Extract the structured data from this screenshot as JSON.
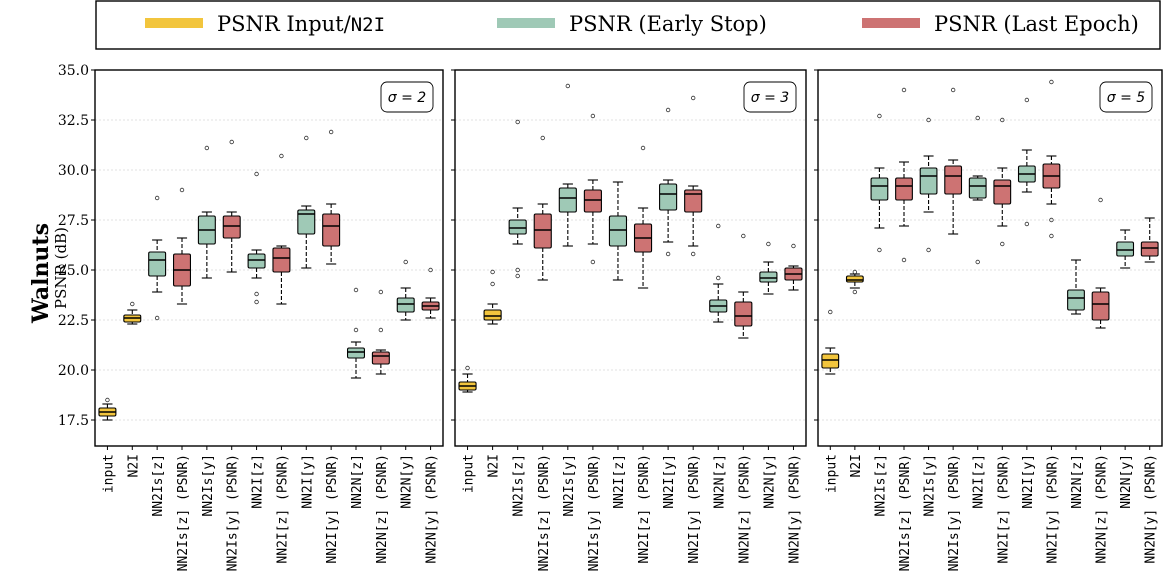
{
  "figure": {
    "row_label": "Walnuts",
    "ylabel": "PSNR (dB)"
  },
  "legend": {
    "placement": "top",
    "entries": [
      {
        "prefix": "PSNR Input/",
        "mono": "N2I",
        "color": "#f2c53d"
      },
      {
        "prefix": "PSNR (Early Stop)",
        "mono": "",
        "color": "#9fc9b6"
      },
      {
        "prefix": "PSNR (Last Epoch)",
        "mono": "",
        "color": "#cd7373"
      }
    ]
  },
  "chart_data": [
    {
      "type": "box",
      "annotation": "σ = 2",
      "ylabel": "PSNR (dB)",
      "ylim": [
        16.2,
        35.0
      ],
      "yticks": [
        "17.5",
        "20.0",
        "22.5",
        "25.0",
        "27.5",
        "30.0",
        "32.5",
        "35.0"
      ],
      "grid": true,
      "categories": [
        "input",
        "N2I",
        "NN2Is[z]",
        "NN2Is[z] (PSNR)",
        "NN2Is[y]",
        "NN2Is[y] (PSNR)",
        "NN2I[z]",
        "NN2I[z] (PSNR)",
        "NN2I[y]",
        "NN2I[y] (PSNR)",
        "NN2N[z]",
        "NN2N[z] (PSNR)",
        "NN2N[y]",
        "NN2N[y] (PSNR)"
      ],
      "kinds": [
        "input",
        "input",
        "early",
        "last",
        "early",
        "last",
        "early",
        "last",
        "early",
        "last",
        "early",
        "last",
        "early",
        "last"
      ],
      "boxes": [
        {
          "whislo": 17.5,
          "q1": 17.7,
          "med": 17.9,
          "q3": 18.1,
          "whishi": 18.3,
          "fliers": [
            18.5
          ]
        },
        {
          "whislo": 22.3,
          "q1": 22.4,
          "med": 22.6,
          "q3": 22.75,
          "whishi": 23.0,
          "fliers": [
            23.3
          ]
        },
        {
          "whislo": 23.9,
          "q1": 24.7,
          "med": 25.5,
          "q3": 25.9,
          "whishi": 26.5,
          "fliers": [
            22.6,
            28.6
          ]
        },
        {
          "whislo": 23.3,
          "q1": 24.2,
          "med": 25.0,
          "q3": 25.8,
          "whishi": 26.6,
          "fliers": [
            29.0
          ]
        },
        {
          "whislo": 24.6,
          "q1": 26.3,
          "med": 27.0,
          "q3": 27.7,
          "whishi": 27.9,
          "fliers": [
            31.1
          ]
        },
        {
          "whislo": 24.9,
          "q1": 26.6,
          "med": 27.2,
          "q3": 27.7,
          "whishi": 27.9,
          "fliers": [
            31.4
          ]
        },
        {
          "whislo": 24.6,
          "q1": 25.1,
          "med": 25.5,
          "q3": 25.8,
          "whishi": 26.0,
          "fliers": [
            23.4,
            23.8,
            29.8
          ]
        },
        {
          "whislo": 23.3,
          "q1": 24.9,
          "med": 25.6,
          "q3": 26.1,
          "whishi": 26.2,
          "fliers": [
            30.7
          ]
        },
        {
          "whislo": 25.1,
          "q1": 26.8,
          "med": 27.8,
          "q3": 28.0,
          "whishi": 28.2,
          "fliers": [
            31.6
          ]
        },
        {
          "whislo": 25.3,
          "q1": 26.2,
          "med": 27.2,
          "q3": 27.8,
          "whishi": 28.3,
          "fliers": [
            31.9
          ]
        },
        {
          "whislo": 19.6,
          "q1": 20.6,
          "med": 20.9,
          "q3": 21.1,
          "whishi": 21.4,
          "fliers": [
            22.0,
            24.0
          ]
        },
        {
          "whislo": 19.8,
          "q1": 20.3,
          "med": 20.7,
          "q3": 20.9,
          "whishi": 21.0,
          "fliers": [
            22.0,
            23.9
          ]
        },
        {
          "whislo": 22.5,
          "q1": 22.9,
          "med": 23.3,
          "q3": 23.6,
          "whishi": 24.1,
          "fliers": [
            25.4
          ]
        },
        {
          "whislo": 22.6,
          "q1": 23.0,
          "med": 23.2,
          "q3": 23.4,
          "whishi": 23.6,
          "fliers": [
            25.0
          ]
        }
      ]
    },
    {
      "type": "box",
      "annotation": "σ = 3",
      "ylim": [
        16.2,
        35.0
      ],
      "grid": true,
      "categories": [
        "input",
        "N2I",
        "NN2Is[z]",
        "NN2Is[z] (PSNR)",
        "NN2Is[y]",
        "NN2Is[y] (PSNR)",
        "NN2I[z]",
        "NN2I[z] (PSNR)",
        "NN2I[y]",
        "NN2I[y] (PSNR)",
        "NN2N[z]",
        "NN2N[z] (PSNR)",
        "NN2N[y]",
        "NN2N[y] (PSNR)"
      ],
      "kinds": [
        "input",
        "input",
        "early",
        "last",
        "early",
        "last",
        "early",
        "last",
        "early",
        "last",
        "early",
        "last",
        "early",
        "last"
      ],
      "boxes": [
        {
          "whislo": 18.9,
          "q1": 19.0,
          "med": 19.2,
          "q3": 19.4,
          "whishi": 19.8,
          "fliers": [
            20.1
          ]
        },
        {
          "whislo": 22.3,
          "q1": 22.5,
          "med": 22.7,
          "q3": 23.0,
          "whishi": 23.3,
          "fliers": [
            24.3,
            24.9
          ]
        },
        {
          "whislo": 26.3,
          "q1": 26.8,
          "med": 27.1,
          "q3": 27.5,
          "whishi": 28.1,
          "fliers": [
            24.7,
            25.0,
            32.4
          ]
        },
        {
          "whislo": 24.5,
          "q1": 26.1,
          "med": 27.0,
          "q3": 27.8,
          "whishi": 28.3,
          "fliers": [
            31.6
          ]
        },
        {
          "whislo": 26.2,
          "q1": 27.9,
          "med": 28.6,
          "q3": 29.1,
          "whishi": 29.3,
          "fliers": [
            34.2
          ]
        },
        {
          "whislo": 26.3,
          "q1": 27.9,
          "med": 28.5,
          "q3": 29.0,
          "whishi": 29.5,
          "fliers": [
            25.4,
            32.7
          ]
        },
        {
          "whislo": 24.5,
          "q1": 26.2,
          "med": 27.0,
          "q3": 27.7,
          "whishi": 29.4,
          "fliers": []
        },
        {
          "whislo": 24.1,
          "q1": 25.9,
          "med": 26.6,
          "q3": 27.3,
          "whishi": 28.1,
          "fliers": [
            31.1
          ]
        },
        {
          "whislo": 26.4,
          "q1": 28.0,
          "med": 28.8,
          "q3": 29.3,
          "whishi": 29.5,
          "fliers": [
            25.8,
            33.0
          ]
        },
        {
          "whislo": 26.2,
          "q1": 27.9,
          "med": 28.8,
          "q3": 29.0,
          "whishi": 29.2,
          "fliers": [
            25.8,
            33.6
          ]
        },
        {
          "whislo": 22.4,
          "q1": 22.9,
          "med": 23.2,
          "q3": 23.5,
          "whishi": 24.3,
          "fliers": [
            24.6,
            27.2
          ]
        },
        {
          "whislo": 21.6,
          "q1": 22.2,
          "med": 22.7,
          "q3": 23.4,
          "whishi": 23.9,
          "fliers": [
            26.7
          ]
        },
        {
          "whislo": 23.8,
          "q1": 24.4,
          "med": 24.6,
          "q3": 24.9,
          "whishi": 25.4,
          "fliers": [
            26.3
          ]
        },
        {
          "whislo": 24.0,
          "q1": 24.5,
          "med": 24.8,
          "q3": 25.1,
          "whishi": 25.2,
          "fliers": [
            26.2
          ]
        }
      ]
    },
    {
      "type": "box",
      "annotation": "σ = 5",
      "ylim": [
        16.2,
        35.0
      ],
      "grid": true,
      "categories": [
        "input",
        "N2I",
        "NN2Is[z]",
        "NN2Is[z] (PSNR)",
        "NN2Is[y]",
        "NN2Is[y] (PSNR)",
        "NN2I[z]",
        "NN2I[z] (PSNR)",
        "NN2I[y]",
        "NN2I[y] (PSNR)",
        "NN2N[z]",
        "NN2N[z] (PSNR)",
        "NN2N[y]",
        "NN2N[y] (PSNR)"
      ],
      "kinds": [
        "input",
        "input",
        "early",
        "last",
        "early",
        "last",
        "early",
        "last",
        "early",
        "last",
        "early",
        "last",
        "early",
        "last"
      ],
      "boxes": [
        {
          "whislo": 19.8,
          "q1": 20.1,
          "med": 20.5,
          "q3": 20.8,
          "whishi": 21.1,
          "fliers": [
            22.9
          ]
        },
        {
          "whislo": 24.1,
          "q1": 24.4,
          "med": 24.5,
          "q3": 24.7,
          "whishi": 24.8,
          "fliers": [
            23.9,
            24.9
          ]
        },
        {
          "whislo": 27.1,
          "q1": 28.5,
          "med": 29.2,
          "q3": 29.6,
          "whishi": 30.1,
          "fliers": [
            26.0,
            32.7
          ]
        },
        {
          "whislo": 27.2,
          "q1": 28.5,
          "med": 29.2,
          "q3": 29.6,
          "whishi": 30.4,
          "fliers": [
            25.5,
            34.0
          ]
        },
        {
          "whislo": 27.9,
          "q1": 28.8,
          "med": 29.7,
          "q3": 30.1,
          "whishi": 30.7,
          "fliers": [
            26.0,
            32.5
          ]
        },
        {
          "whislo": 26.8,
          "q1": 28.8,
          "med": 29.7,
          "q3": 30.2,
          "whishi": 30.5,
          "fliers": [
            34.0
          ]
        },
        {
          "whislo": 28.5,
          "q1": 28.6,
          "med": 29.2,
          "q3": 29.6,
          "whishi": 29.7,
          "fliers": [
            25.4,
            32.6
          ]
        },
        {
          "whislo": 27.2,
          "q1": 28.3,
          "med": 29.2,
          "q3": 29.5,
          "whishi": 30.1,
          "fliers": [
            26.3,
            32.5
          ]
        },
        {
          "whislo": 28.9,
          "q1": 29.4,
          "med": 29.8,
          "q3": 30.2,
          "whishi": 31.0,
          "fliers": [
            27.3,
            33.5
          ]
        },
        {
          "whislo": 28.3,
          "q1": 29.1,
          "med": 29.7,
          "q3": 30.3,
          "whishi": 30.7,
          "fliers": [
            26.7,
            27.5,
            34.4
          ]
        },
        {
          "whislo": 22.8,
          "q1": 23.0,
          "med": 23.6,
          "q3": 24.0,
          "whishi": 25.5,
          "fliers": []
        },
        {
          "whislo": 22.1,
          "q1": 22.5,
          "med": 23.3,
          "q3": 23.9,
          "whishi": 24.1,
          "fliers": [
            28.5
          ]
        },
        {
          "whislo": 25.1,
          "q1": 25.7,
          "med": 26.0,
          "q3": 26.4,
          "whishi": 27.0,
          "fliers": []
        },
        {
          "whislo": 25.4,
          "q1": 25.7,
          "med": 26.1,
          "q3": 26.4,
          "whishi": 27.6,
          "fliers": []
        }
      ]
    }
  ]
}
